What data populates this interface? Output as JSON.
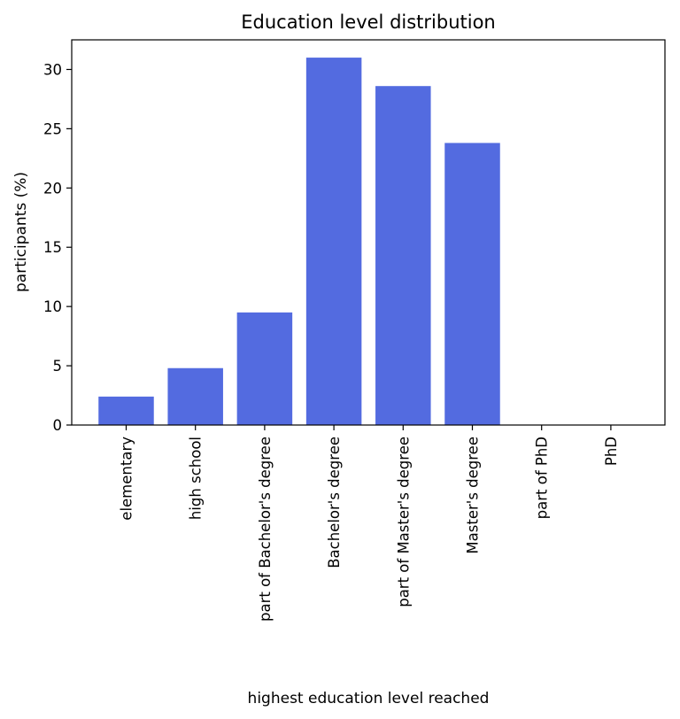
{
  "chart_data": {
    "type": "bar",
    "title": "Education level distribution",
    "xlabel": "highest education level reached",
    "ylabel": "participants (%)",
    "categories": [
      "elementary",
      "high school",
      "part of Bachelor's degree",
      "Bachelor's degree",
      "part of Master's degree",
      "Master's degree",
      "part of PhD",
      "PhD"
    ],
    "values": [
      2.4,
      4.8,
      9.5,
      31.0,
      28.6,
      23.8,
      0,
      0
    ],
    "ylim": [
      0,
      32.5
    ],
    "yticks": [
      "0",
      "5",
      "10",
      "15",
      "20",
      "25",
      "30"
    ],
    "bar_color": "#536be0",
    "grid": false,
    "legend": "none"
  }
}
